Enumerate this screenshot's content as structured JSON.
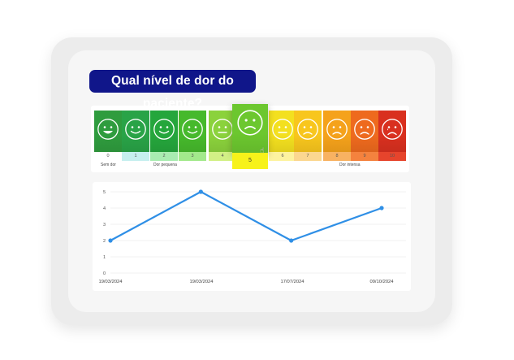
{
  "question": "Qual nível de dor do paciente?",
  "pain_scale": {
    "selected": 5,
    "levels": [
      {
        "value": "0",
        "color": "#2f9c3e",
        "face": "laugh"
      },
      {
        "value": "1",
        "color": "#29a347",
        "face": "smile"
      },
      {
        "value": "2",
        "color": "#25a63c",
        "face": "smile"
      },
      {
        "value": "3",
        "color": "#46b92c",
        "face": "smile"
      },
      {
        "value": "4",
        "color": "#8bd23c",
        "face": "neutral"
      },
      {
        "value": "5",
        "color": "#6cc72f",
        "face": "sad"
      },
      {
        "value": "6",
        "color": "#f3e01f",
        "face": "neutral"
      },
      {
        "value": "7",
        "color": "#f8c61d",
        "face": "sad"
      },
      {
        "value": "8",
        "color": "#f5a21b",
        "face": "sad"
      },
      {
        "value": "9",
        "color": "#ee6a1e",
        "face": "sad"
      },
      {
        "value": "10",
        "color": "#d9301f",
        "face": "cry"
      }
    ],
    "number_bg": [
      "#ffffff",
      "#c6efef",
      "#a9ecb1",
      "#a3e98c",
      "#d2f086",
      "#f7f21a",
      "#fdf3a0",
      "#fbd790",
      "#f8b262",
      "#f4823e",
      "#e6442c"
    ],
    "categories": [
      {
        "label": "Sem dor",
        "from": 0
      },
      {
        "label": "Dor pequena",
        "from": 2
      },
      {
        "label": "Dor intensa",
        "from": 8
      }
    ]
  },
  "chart_data": {
    "type": "line",
    "x": [
      "19/03/2024",
      "19/03/2024",
      "17/07/2024",
      "09/10/2024"
    ],
    "values": [
      2,
      5,
      2,
      4
    ],
    "ylim": [
      0,
      5
    ],
    "yticks": [
      "0",
      "1",
      "2",
      "3",
      "4",
      "5"
    ],
    "grid": true,
    "color": "#2f8fe6"
  }
}
